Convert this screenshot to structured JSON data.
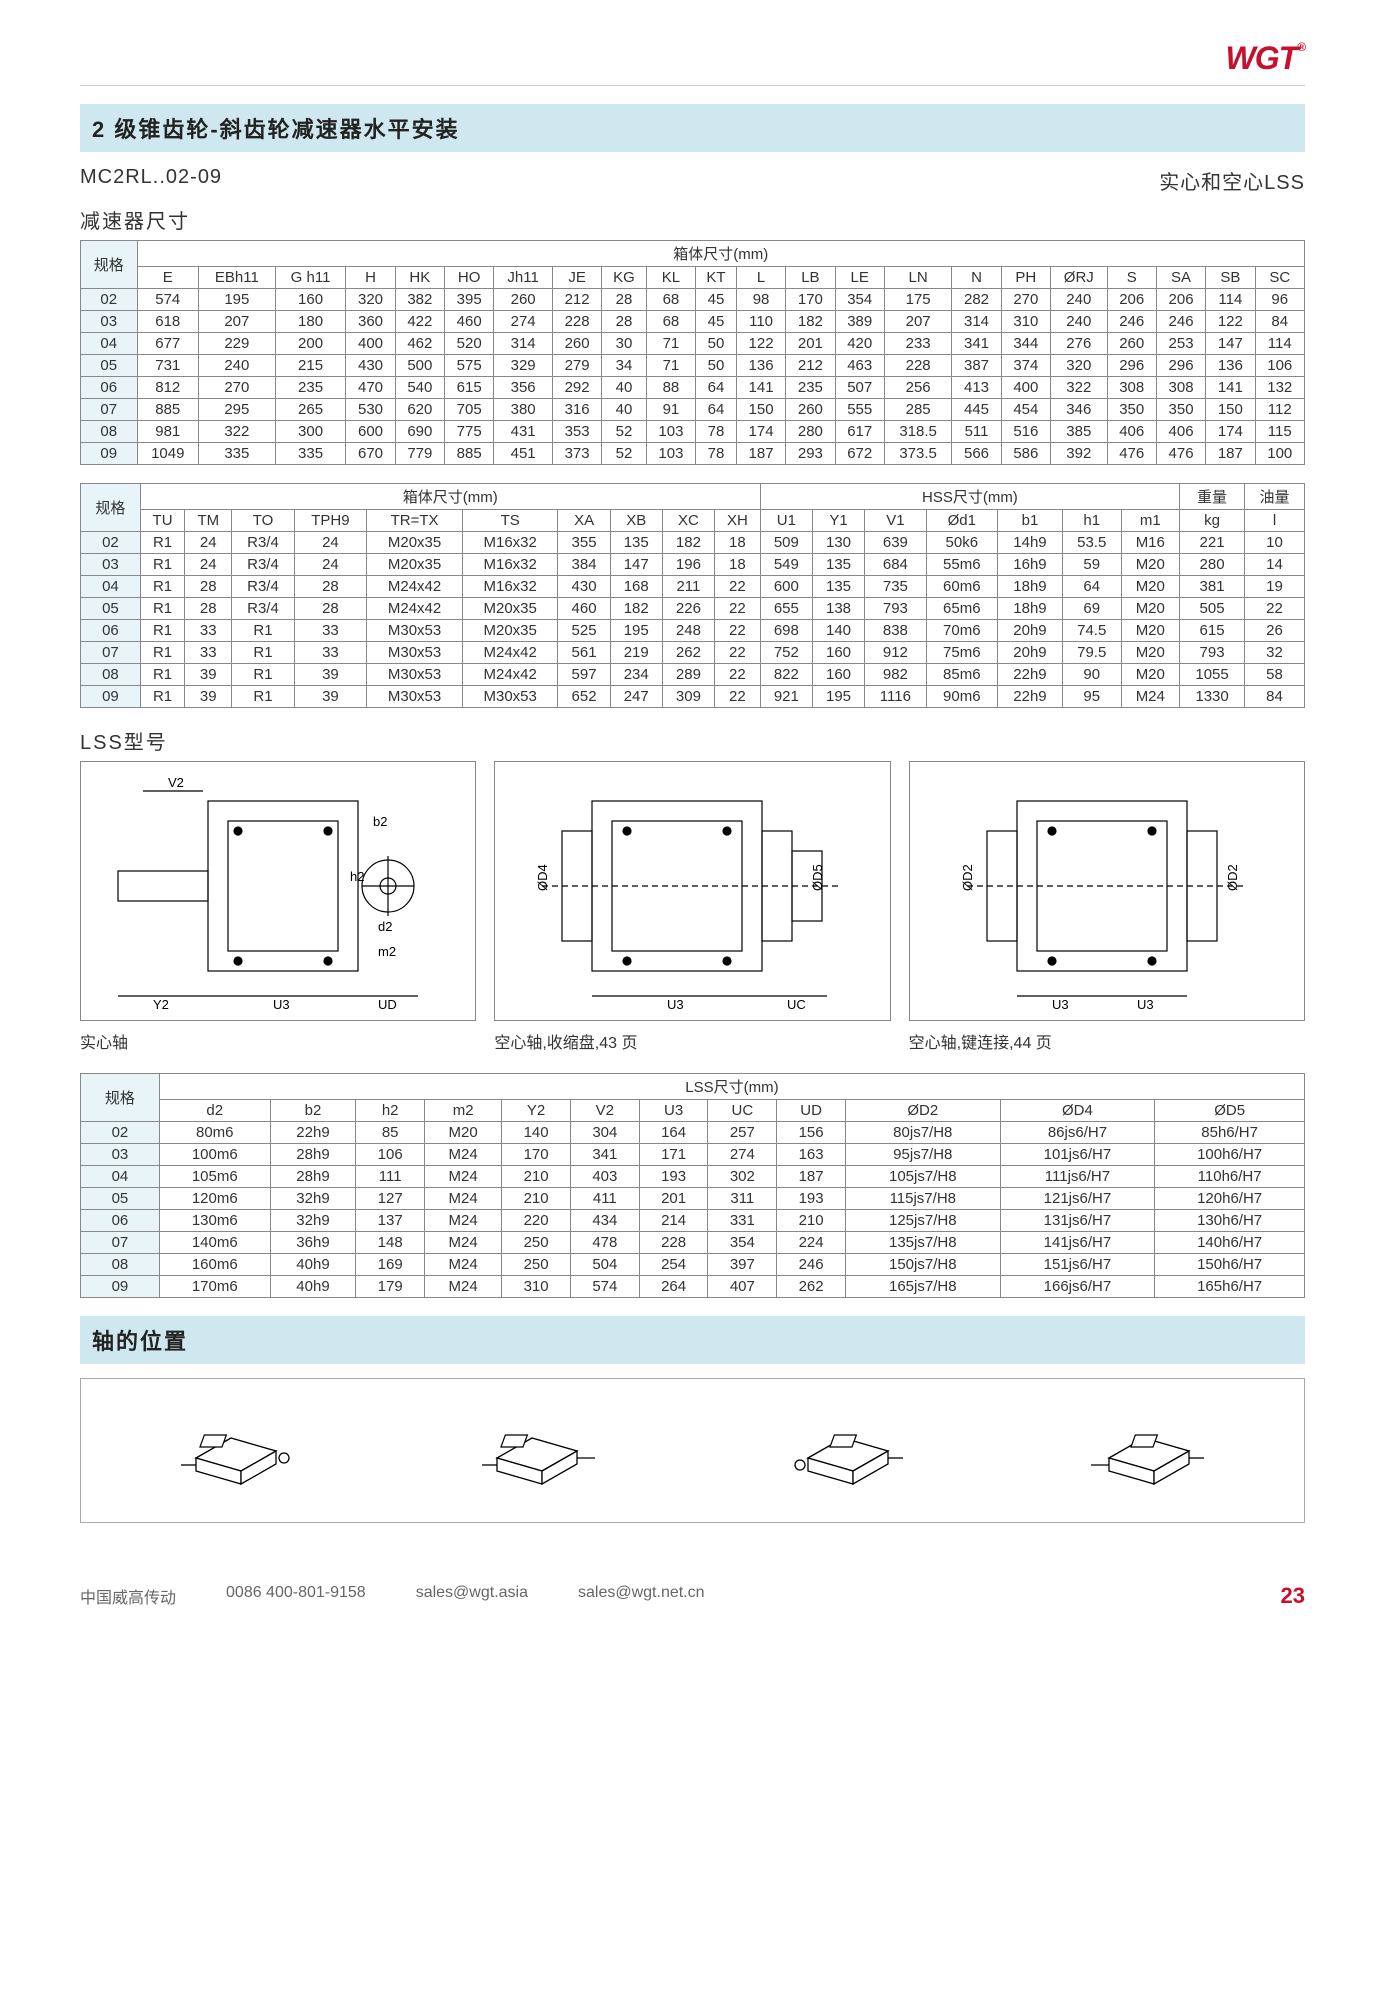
{
  "brand": "WGT",
  "title": "2 级锥齿轮-斜齿轮减速器水平安装",
  "model_code": "MC2RL..02-09",
  "shaft_option": "实心和空心LSS",
  "section1": "减速器尺寸",
  "box_size_label": "箱体尺寸(mm)",
  "hss_size_label": "HSS尺寸(mm)",
  "weight_label": "重量",
  "oil_label": "油量",
  "lss_model_label": "LSS型号",
  "lss_size_label": "LSS尺寸(mm)",
  "shaft_pos_label": "轴的位置",
  "spec_header": "规格",
  "t1": {
    "cols": [
      "E",
      "EBh11",
      "G h11",
      "H",
      "HK",
      "HO",
      "Jh11",
      "JE",
      "KG",
      "KL",
      "KT",
      "L",
      "LB",
      "LE",
      "LN",
      "N",
      "PH",
      "ØRJ",
      "S",
      "SA",
      "SB",
      "SC"
    ],
    "rows": [
      [
        "02",
        "574",
        "195",
        "160",
        "320",
        "382",
        "395",
        "260",
        "212",
        "28",
        "68",
        "45",
        "98",
        "170",
        "354",
        "175",
        "282",
        "270",
        "240",
        "206",
        "206",
        "114",
        "96"
      ],
      [
        "03",
        "618",
        "207",
        "180",
        "360",
        "422",
        "460",
        "274",
        "228",
        "28",
        "68",
        "45",
        "110",
        "182",
        "389",
        "207",
        "314",
        "310",
        "240",
        "246",
        "246",
        "122",
        "84"
      ],
      [
        "04",
        "677",
        "229",
        "200",
        "400",
        "462",
        "520",
        "314",
        "260",
        "30",
        "71",
        "50",
        "122",
        "201",
        "420",
        "233",
        "341",
        "344",
        "276",
        "260",
        "253",
        "147",
        "114"
      ],
      [
        "05",
        "731",
        "240",
        "215",
        "430",
        "500",
        "575",
        "329",
        "279",
        "34",
        "71",
        "50",
        "136",
        "212",
        "463",
        "228",
        "387",
        "374",
        "320",
        "296",
        "296",
        "136",
        "106"
      ],
      [
        "06",
        "812",
        "270",
        "235",
        "470",
        "540",
        "615",
        "356",
        "292",
        "40",
        "88",
        "64",
        "141",
        "235",
        "507",
        "256",
        "413",
        "400",
        "322",
        "308",
        "308",
        "141",
        "132"
      ],
      [
        "07",
        "885",
        "295",
        "265",
        "530",
        "620",
        "705",
        "380",
        "316",
        "40",
        "91",
        "64",
        "150",
        "260",
        "555",
        "285",
        "445",
        "454",
        "346",
        "350",
        "350",
        "150",
        "112"
      ],
      [
        "08",
        "981",
        "322",
        "300",
        "600",
        "690",
        "775",
        "431",
        "353",
        "52",
        "103",
        "78",
        "174",
        "280",
        "617",
        "318.5",
        "511",
        "516",
        "385",
        "406",
        "406",
        "174",
        "115"
      ],
      [
        "09",
        "1049",
        "335",
        "335",
        "670",
        "779",
        "885",
        "451",
        "373",
        "52",
        "103",
        "78",
        "187",
        "293",
        "672",
        "373.5",
        "566",
        "586",
        "392",
        "476",
        "476",
        "187",
        "100"
      ]
    ]
  },
  "t2": {
    "cols_box": [
      "TU",
      "TM",
      "TO",
      "TPH9",
      "TR=TX",
      "TS",
      "XA",
      "XB",
      "XC",
      "XH"
    ],
    "cols_hss": [
      "U1",
      "Y1",
      "V1",
      "Ød1",
      "b1",
      "h1",
      "m1"
    ],
    "rows": [
      [
        "02",
        "R1",
        "24",
        "R3/4",
        "24",
        "M20x35",
        "M16x32",
        "355",
        "135",
        "182",
        "18",
        "509",
        "130",
        "639",
        "50k6",
        "14h9",
        "53.5",
        "M16",
        "221",
        "10"
      ],
      [
        "03",
        "R1",
        "24",
        "R3/4",
        "24",
        "M20x35",
        "M16x32",
        "384",
        "147",
        "196",
        "18",
        "549",
        "135",
        "684",
        "55m6",
        "16h9",
        "59",
        "M20",
        "280",
        "14"
      ],
      [
        "04",
        "R1",
        "28",
        "R3/4",
        "28",
        "M24x42",
        "M16x32",
        "430",
        "168",
        "211",
        "22",
        "600",
        "135",
        "735",
        "60m6",
        "18h9",
        "64",
        "M20",
        "381",
        "19"
      ],
      [
        "05",
        "R1",
        "28",
        "R3/4",
        "28",
        "M24x42",
        "M20x35",
        "460",
        "182",
        "226",
        "22",
        "655",
        "138",
        "793",
        "65m6",
        "18h9",
        "69",
        "M20",
        "505",
        "22"
      ],
      [
        "06",
        "R1",
        "33",
        "R1",
        "33",
        "M30x53",
        "M20x35",
        "525",
        "195",
        "248",
        "22",
        "698",
        "140",
        "838",
        "70m6",
        "20h9",
        "74.5",
        "M20",
        "615",
        "26"
      ],
      [
        "07",
        "R1",
        "33",
        "R1",
        "33",
        "M30x53",
        "M24x42",
        "561",
        "219",
        "262",
        "22",
        "752",
        "160",
        "912",
        "75m6",
        "20h9",
        "79.5",
        "M20",
        "793",
        "32"
      ],
      [
        "08",
        "R1",
        "39",
        "R1",
        "39",
        "M30x53",
        "M24x42",
        "597",
        "234",
        "289",
        "22",
        "822",
        "160",
        "982",
        "85m6",
        "22h9",
        "90",
        "M20",
        "1055",
        "58"
      ],
      [
        "09",
        "R1",
        "39",
        "R1",
        "39",
        "M30x53",
        "M30x53",
        "652",
        "247",
        "309",
        "22",
        "921",
        "195",
        "1116",
        "90m6",
        "22h9",
        "95",
        "M24",
        "1330",
        "84"
      ]
    ]
  },
  "t3": {
    "cols": [
      "d2",
      "b2",
      "h2",
      "m2",
      "Y2",
      "V2",
      "U3",
      "UC",
      "UD",
      "ØD2",
      "ØD4",
      "ØD5"
    ],
    "rows": [
      [
        "02",
        "80m6",
        "22h9",
        "85",
        "M20",
        "140",
        "304",
        "164",
        "257",
        "156",
        "80js7/H8",
        "86js6/H7",
        "85h6/H7"
      ],
      [
        "03",
        "100m6",
        "28h9",
        "106",
        "M24",
        "170",
        "341",
        "171",
        "274",
        "163",
        "95js7/H8",
        "101js6/H7",
        "100h6/H7"
      ],
      [
        "04",
        "105m6",
        "28h9",
        "111",
        "M24",
        "210",
        "403",
        "193",
        "302",
        "187",
        "105js7/H8",
        "111js6/H7",
        "110h6/H7"
      ],
      [
        "05",
        "120m6",
        "32h9",
        "127",
        "M24",
        "210",
        "411",
        "201",
        "311",
        "193",
        "115js7/H8",
        "121js6/H7",
        "120h6/H7"
      ],
      [
        "06",
        "130m6",
        "32h9",
        "137",
        "M24",
        "220",
        "434",
        "214",
        "331",
        "210",
        "125js7/H8",
        "131js6/H7",
        "130h6/H7"
      ],
      [
        "07",
        "140m6",
        "36h9",
        "148",
        "M24",
        "250",
        "478",
        "228",
        "354",
        "224",
        "135js7/H8",
        "141js6/H7",
        "140h6/H7"
      ],
      [
        "08",
        "160m6",
        "40h9",
        "169",
        "M24",
        "250",
        "504",
        "254",
        "397",
        "246",
        "150js7/H8",
        "151js6/H7",
        "150h6/H7"
      ],
      [
        "09",
        "170m6",
        "40h9",
        "179",
        "M24",
        "310",
        "574",
        "264",
        "407",
        "262",
        "165js7/H8",
        "166js6/H7",
        "165h6/H7"
      ]
    ]
  },
  "diag_captions": [
    "实心轴",
    "空心轴,收缩盘,43 页",
    "空心轴,键连接,44 页"
  ],
  "weight_unit": "kg",
  "oil_unit": "l",
  "footer": {
    "company": "中国威高传动",
    "phone": "0086 400-801-9158",
    "email1": "sales@wgt.asia",
    "email2": "sales@wgt.net.cn",
    "page": "23"
  },
  "diag_labels": {
    "d1": [
      "V2",
      "b2",
      "h2",
      "d2",
      "m2",
      "Y2",
      "U3",
      "UD"
    ],
    "d2": [
      "ØD4",
      "ØD5",
      "U3",
      "UC"
    ],
    "d3": [
      "ØD2",
      "ØD2",
      "U3",
      "U3"
    ]
  }
}
